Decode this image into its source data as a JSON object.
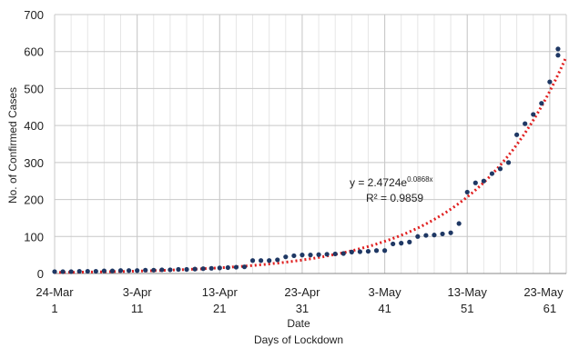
{
  "chart_data": {
    "type": "scatter",
    "ylabel": "No. of Confirmed Cases",
    "xlabel": "Date",
    "xlabel2": "Days of Lockdown",
    "ylim": [
      0,
      700
    ],
    "xlim": [
      1,
      63
    ],
    "y_ticks": [
      "0",
      "100",
      "200",
      "300",
      "400",
      "500",
      "600",
      "700"
    ],
    "x_ticks": [
      {
        "day": 1,
        "date": "24-Mar",
        "day_label": "1"
      },
      {
        "day": 11,
        "date": "3-Apr",
        "day_label": "11"
      },
      {
        "day": 21,
        "date": "13-Apr",
        "day_label": "21"
      },
      {
        "day": 31,
        "date": "23-Apr",
        "day_label": "31"
      },
      {
        "day": 41,
        "date": "3-May",
        "day_label": "41"
      },
      {
        "day": 51,
        "date": "13-May",
        "day_label": "51"
      },
      {
        "day": 61,
        "date": "23-May",
        "day_label": "61"
      }
    ],
    "grid": true,
    "series": [
      {
        "marker_color": "#1f3864",
        "x": [
          1,
          2,
          3,
          4,
          5,
          6,
          7,
          8,
          9,
          10,
          11,
          12,
          13,
          14,
          15,
          16,
          17,
          18,
          19,
          20,
          21,
          22,
          23,
          24,
          25,
          26,
          27,
          28,
          29,
          30,
          31,
          32,
          33,
          34,
          35,
          36,
          37,
          38,
          39,
          40,
          41,
          42,
          43,
          44,
          45,
          46,
          47,
          48,
          49,
          50,
          51,
          52,
          53,
          54,
          55,
          56,
          57,
          58,
          59,
          60,
          61,
          62
        ],
        "y": [
          5,
          5,
          5,
          6,
          6,
          6,
          7,
          7,
          8,
          8,
          8,
          9,
          9,
          10,
          10,
          11,
          11,
          12,
          13,
          14,
          15,
          16,
          17,
          18,
          35,
          35,
          35,
          37,
          45,
          48,
          50,
          50,
          51,
          52,
          53,
          54,
          58,
          59,
          60,
          62,
          62,
          80,
          82,
          85,
          100,
          103,
          104,
          107,
          110,
          135,
          220,
          245,
          250,
          270,
          283,
          300,
          375,
          405,
          430,
          460,
          518,
          590
        ],
        "trendline": {
          "type": "exponential",
          "a": 2.4724,
          "b": 0.0868,
          "color": "#e02020",
          "equation": "y = 2.4724e",
          "equation_exp": "0.0868x",
          "r2": "R² = 0.9859"
        }
      }
    ],
    "extra_points": [
      {
        "x": 62,
        "y": 607
      }
    ]
  }
}
